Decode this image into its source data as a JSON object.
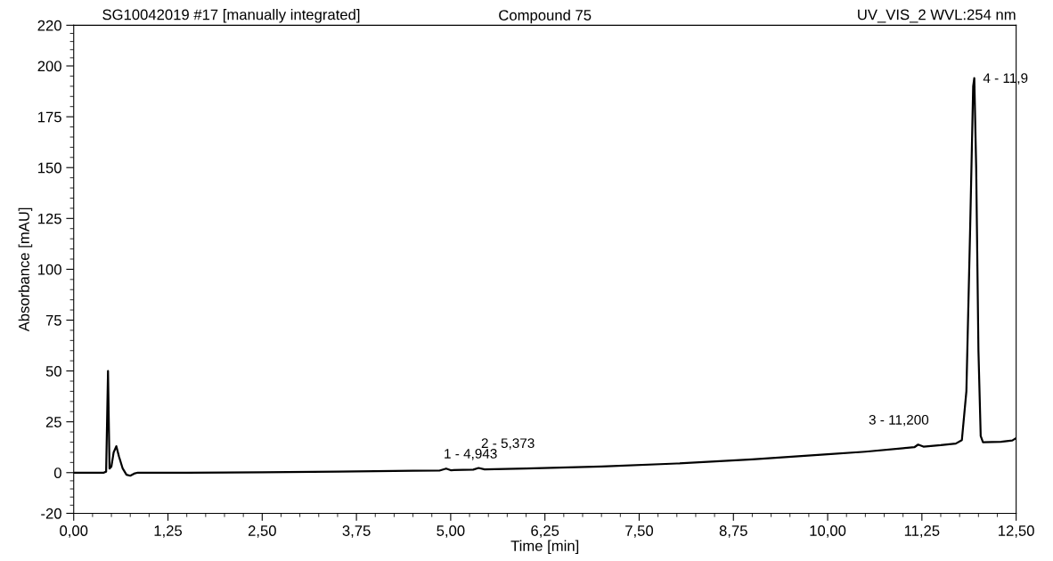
{
  "chart_data": {
    "type": "line",
    "title": "Compound 75",
    "annotations": [
      "SG10042019 #17 [manually integrated]",
      "UV_VIS_2 WVL:254 nm",
      {
        "text": "1 - 4,943",
        "x": 4.94,
        "y": 2
      },
      {
        "text": "2 - 5,373",
        "x": 5.37,
        "y": 2.3
      },
      {
        "text": "3 - 11,200",
        "x": 11.2,
        "y": 13.8
      },
      {
        "text": "4 - 11,9",
        "x": 11.945,
        "y": 194
      }
    ],
    "xlabel": "Time [min]",
    "ylabel": "Absorbance [mAU]",
    "series": [
      {
        "color": "#000000",
        "x": [
          0,
          0.4,
          0.43,
          0.455,
          0.475,
          0.5,
          0.53,
          0.565,
          0.6,
          0.65,
          0.7,
          0.75,
          0.8,
          0.85,
          1.5,
          2.5,
          3.5,
          4.5,
          4.85,
          4.94,
          5.0,
          5.3,
          5.37,
          5.45,
          6.0,
          7.0,
          8.0,
          9.0,
          10.0,
          10.5,
          11.0,
          11.15,
          11.2,
          11.27,
          11.5,
          11.7,
          11.78,
          11.84,
          11.89,
          11.93,
          11.945,
          11.97,
          12.0,
          12.03,
          12.06,
          12.3,
          12.45,
          12.5
        ],
        "values": [
          0,
          0,
          0.5,
          50,
          2,
          3,
          10,
          13,
          8,
          2,
          -1,
          -1.5,
          -0.5,
          0,
          0,
          0.2,
          0.5,
          0.9,
          1.0,
          2,
          1.2,
          1.5,
          2.3,
          1.6,
          2.0,
          3.0,
          4.5,
          6.5,
          9.0,
          10.3,
          12.0,
          12.5,
          13.8,
          12.8,
          13.5,
          14.3,
          16,
          40,
          120,
          190,
          194,
          150,
          60,
          18,
          15,
          15.2,
          15.8,
          17
        ]
      }
    ],
    "xlim": [
      0,
      12.5
    ],
    "xticks": [
      {
        "value": 0,
        "label": "0,00"
      },
      {
        "value": 1.25,
        "label": "1,25"
      },
      {
        "value": 2.5,
        "label": "2,50"
      },
      {
        "value": 3.75,
        "label": "3,75"
      },
      {
        "value": 5,
        "label": "5,00"
      },
      {
        "value": 6.25,
        "label": "6,25"
      },
      {
        "value": 7.5,
        "label": "7,50"
      },
      {
        "value": 8.75,
        "label": "8,75"
      },
      {
        "value": 10,
        "label": "10,00"
      },
      {
        "value": 11.25,
        "label": "11,25"
      },
      {
        "value": 12.5,
        "label": "12,50"
      }
    ],
    "ylim": [
      -20,
      220
    ],
    "yticks": [
      -20,
      0,
      25,
      50,
      75,
      100,
      125,
      150,
      175,
      200,
      220
    ],
    "grid": false,
    "legend": false,
    "marker": "none",
    "line_style": "solid"
  }
}
